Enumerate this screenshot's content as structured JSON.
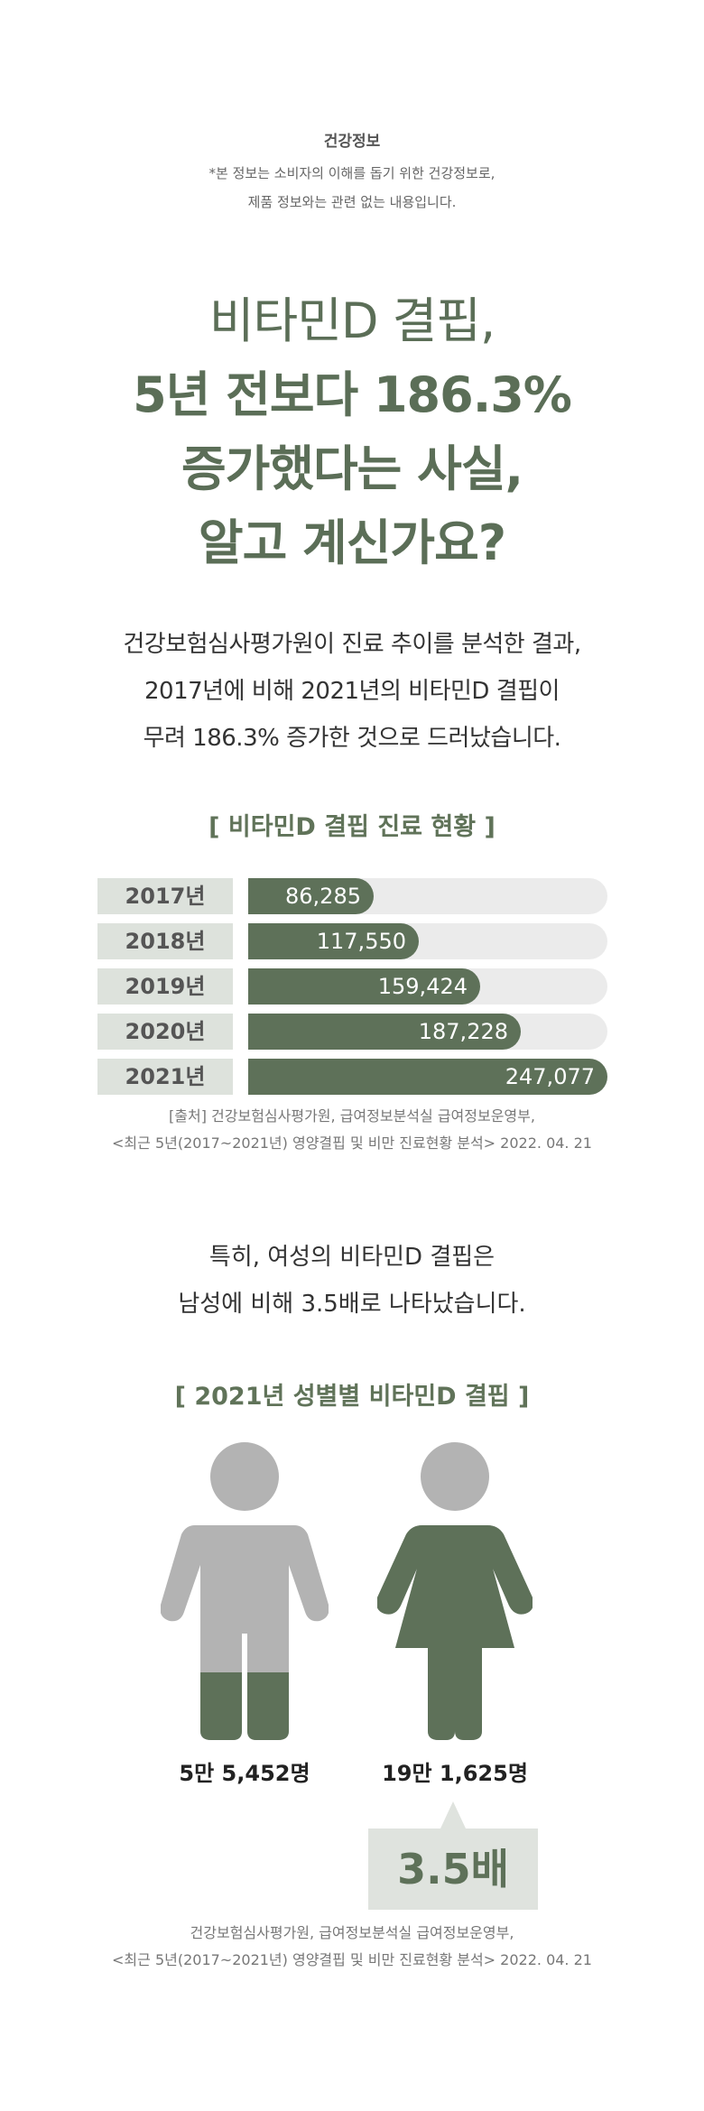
{
  "header": {
    "tag": "건강정보",
    "note_line1": "*본 정보는 소비자의 이해를 돕기 위한 건강정보로,",
    "note_line2": "제품 정보와는 관련 없는 내용입니다."
  },
  "headline": {
    "line1": "비타민D 결핍,",
    "line2": "5년 전보다 186.3%",
    "line3": "증가했다는 사실,",
    "line4": "알고 계신가요?"
  },
  "lead": {
    "line1": "건강보험심사평가원이 진료 추이를 분석한 결과,",
    "line2": "2017년에 비해 2021년의 비타민D 결핍이",
    "line3": "무려 186.3% 증가한 것으로 드러났습니다."
  },
  "chart_data": [
    {
      "type": "bar",
      "orientation": "horizontal",
      "title": "[ 비타민D 결핍 진료 현황 ]",
      "categories": [
        "2017년",
        "2018년",
        "2019년",
        "2020년",
        "2021년"
      ],
      "values": [
        86285,
        117550,
        159424,
        187228,
        247077
      ],
      "value_labels": [
        "86,285",
        "117,550",
        "159,424",
        "187,228",
        "247,077"
      ],
      "xlim": [
        0,
        247077
      ],
      "bar_color": "#5e7159",
      "track_color": "#ebebeb",
      "source_line1": "[출처] 건강보험심사평가원, 급여정보분석실 급여정보운영부,",
      "source_line2": "<최근 5년(2017~2021년) 영양결핍 및 비만 진료현황 분석> 2022. 04. 21"
    },
    {
      "type": "pictogram",
      "title": "[ 2021년 성별별 비타민D 결핍 ]",
      "categories": [
        "male",
        "female"
      ],
      "values": [
        55452,
        191625
      ],
      "value_labels": [
        "5만 5,452명",
        "19만 1,625명"
      ],
      "ratio_label": "3.5배",
      "fill_color": "#5e7159",
      "base_color": "#b3b3b3",
      "source_line1": "건강보험심사평가원, 급여정보분석실 급여정보운영부,",
      "source_line2": "<최근 5년(2017~2021년) 영양결핍 및 비만 진료현황 분석> 2022. 04. 21"
    }
  ],
  "lead2": {
    "line1": "특히, 여성의 비타민D 결핍은",
    "line2": "남성에 비해 3.5배로 나타났습니다."
  }
}
